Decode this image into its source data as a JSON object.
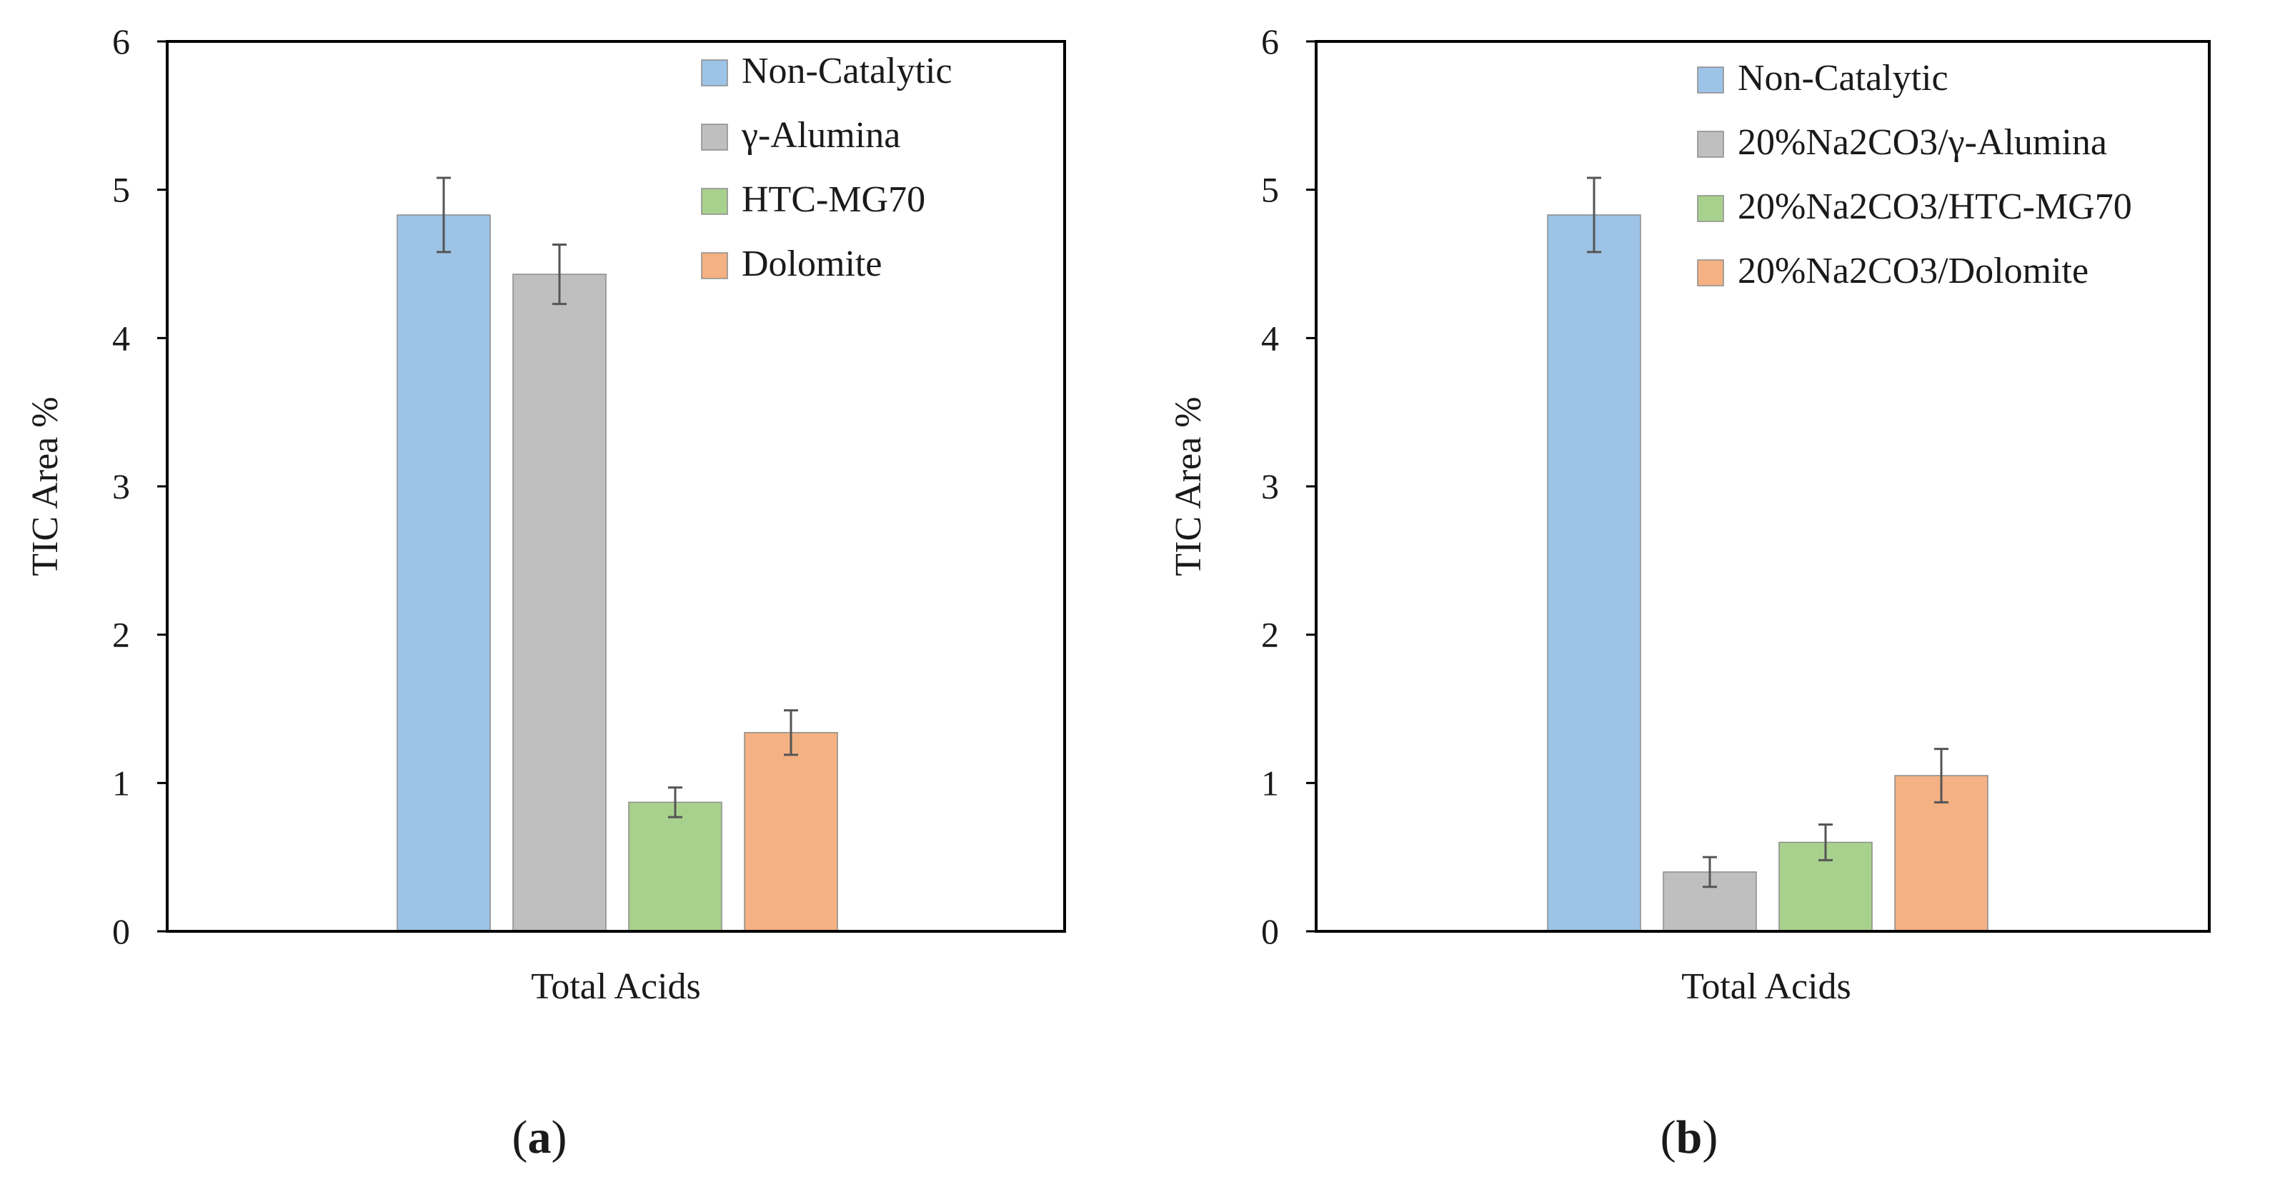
{
  "figure": {
    "panels": [
      {
        "label_open": "(",
        "label_letter": "a",
        "label_close": ")"
      },
      {
        "label_open": "(",
        "label_letter": "b",
        "label_close": ")"
      }
    ]
  },
  "chart_data": [
    {
      "type": "bar",
      "title": "",
      "xlabel": "",
      "ylabel": "TIC Area %",
      "ylim": [
        0,
        6
      ],
      "yticks": [
        "0",
        "1",
        "2",
        "3",
        "4",
        "5",
        "6"
      ],
      "grid": false,
      "legend_position": "top-right",
      "categories": [
        "Total Acids"
      ],
      "series": [
        {
          "name": "Non-Catalytic",
          "values": [
            4.83
          ],
          "error": [
            0.25
          ],
          "color": "#9dc3e6"
        },
        {
          "name": "γ-Alumina",
          "values": [
            4.43
          ],
          "error": [
            0.2
          ],
          "color": "#bfbfbf"
        },
        {
          "name": "HTC-MG70",
          "values": [
            0.87
          ],
          "error": [
            0.1
          ],
          "color": "#a9d18e"
        },
        {
          "name": "Dolomite",
          "values": [
            1.34
          ],
          "error": [
            0.15
          ],
          "color": "#f4b183"
        }
      ]
    },
    {
      "type": "bar",
      "title": "",
      "xlabel": "",
      "ylabel": "TIC Area %",
      "ylim": [
        0,
        6
      ],
      "yticks": [
        "0",
        "1",
        "2",
        "3",
        "4",
        "5",
        "6"
      ],
      "grid": false,
      "legend_position": "top-right",
      "categories": [
        "Total Acids"
      ],
      "series": [
        {
          "name": "Non-Catalytic",
          "values": [
            4.83
          ],
          "error": [
            0.25
          ],
          "color": "#9dc3e6"
        },
        {
          "name": "20%Na2CO3/γ-Alumina",
          "values": [
            0.4
          ],
          "error": [
            0.1
          ],
          "color": "#bfbfbf"
        },
        {
          "name": "20%Na2CO3/HTC-MG70",
          "values": [
            0.6
          ],
          "error": [
            0.12
          ],
          "color": "#a9d18e"
        },
        {
          "name": "20%Na2CO3/Dolomite",
          "values": [
            1.05
          ],
          "error": [
            0.18
          ],
          "color": "#f4b183"
        }
      ]
    }
  ]
}
